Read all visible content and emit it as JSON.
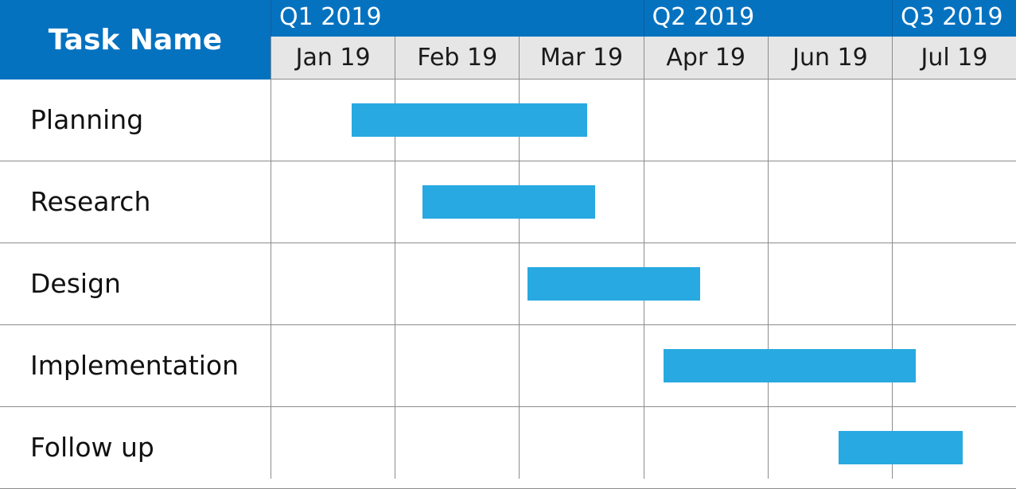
{
  "header": {
    "task_column_label": "Task Name"
  },
  "colors": {
    "header_blue": "#0572c0",
    "month_header_gray": "#e6e6e6",
    "bar_blue": "#29a9e1",
    "grid_gray": "#8c8c8c"
  },
  "timeline": {
    "quarters": [
      {
        "label": "Q1 2019",
        "months": 3
      },
      {
        "label": "Q2 2019",
        "months": 2
      },
      {
        "label": "Q3 2019",
        "months": 1
      }
    ],
    "months": [
      "Jan 19",
      "Feb 19",
      "Mar 19",
      "Apr 19",
      "Jun 19",
      "Jul 19"
    ]
  },
  "tasks": [
    {
      "name": "Planning",
      "start": 0.65,
      "end": 2.55
    },
    {
      "name": "Research",
      "start": 1.22,
      "end": 2.61
    },
    {
      "name": "Design",
      "start": 2.07,
      "end": 3.46
    },
    {
      "name": "Implementation",
      "start": 3.16,
      "end": 5.19
    },
    {
      "name": "Follow up",
      "start": 4.57,
      "end": 5.57
    }
  ]
}
